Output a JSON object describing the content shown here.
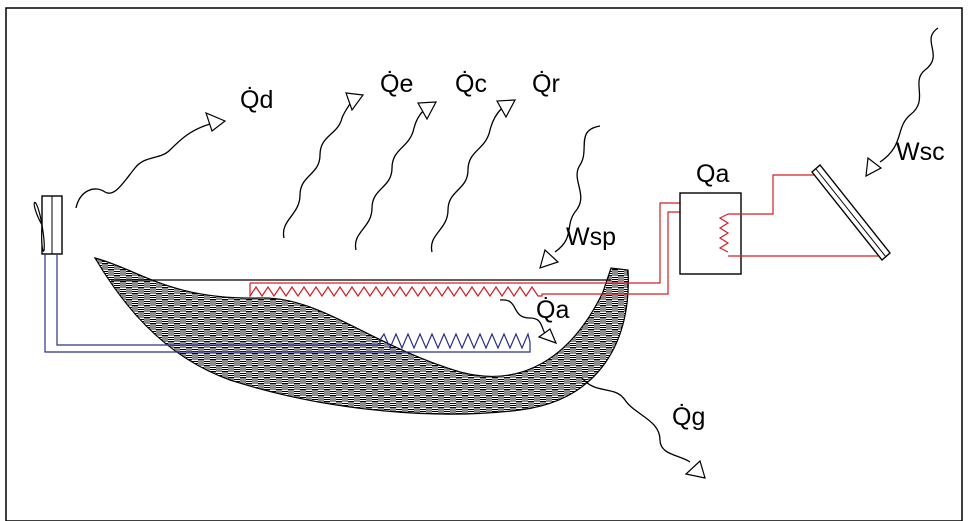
{
  "labels": {
    "qd": "Q̇d",
    "qe": "Q̇e",
    "qc": "Q̇c",
    "qr": "Q̇r",
    "wsp": "Wsp",
    "qa_tank": "Qa",
    "wsc": "Wsc",
    "qa_pond": "Q̇a",
    "qg": "Q̇g"
  },
  "colors": {
    "hot_loop": "#d61f26",
    "cold_loop": "#27308a",
    "outline": "#000000"
  }
}
